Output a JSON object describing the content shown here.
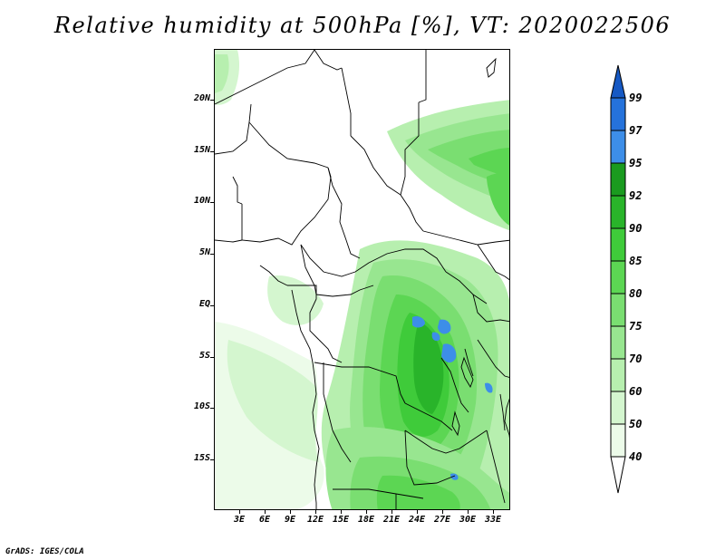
{
  "title": "Relative humidity at 500hPa [%], VT: 2020022506",
  "footer": "GrADS: IGES/COLA",
  "map": {
    "region": "Central / East Africa",
    "lon_range": [
      0,
      35
    ],
    "lat_range": [
      -20,
      24
    ],
    "y_ticks": [
      "20N",
      "15N",
      "10N",
      "5N",
      "EQ",
      "5S",
      "10S",
      "15S"
    ],
    "x_ticks": [
      "3E",
      "6E",
      "9E",
      "12E",
      "15E",
      "18E",
      "21E",
      "24E",
      "27E",
      "30E",
      "33E"
    ]
  },
  "colorbar": {
    "levels": [
      "99",
      "97",
      "95",
      "92",
      "90",
      "85",
      "80",
      "75",
      "70",
      "60",
      "50",
      "40"
    ],
    "colors": {
      "below_40": "#ffffff",
      "40_50": "#ecfbe9",
      "50_60": "#d4f6cf",
      "60_70": "#b7efaf",
      "70_75": "#98e690",
      "75_80": "#7ade71",
      "80_85": "#5cd653",
      "85_90": "#3fcb3a",
      "90_92": "#29b42a",
      "92_95": "#1a9b1f",
      "95_97": "#3d8ee8",
      "97_99": "#2572db",
      "above_99": "#1659c4"
    }
  }
}
